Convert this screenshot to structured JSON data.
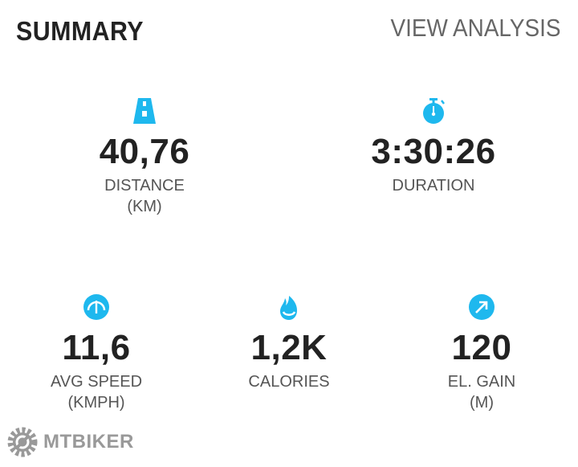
{
  "header": {
    "title": "SUMMARY",
    "link": "VIEW ANALYSIS"
  },
  "accent": "#1eb8ee",
  "stats": [
    {
      "icon": "road-icon",
      "value": "40,76",
      "label": "DISTANCE",
      "unit": "(KM)"
    },
    {
      "icon": "stopwatch-icon",
      "value": "3:30:26",
      "label": "DURATION"
    },
    {
      "icon": "speedometer-icon",
      "value": "11,6",
      "label": "AVG SPEED",
      "unit": "(KMPH)"
    },
    {
      "icon": "flame-icon",
      "value": "1,2K",
      "label": "CALORIES"
    },
    {
      "icon": "arrow-up-right-icon",
      "value": "120",
      "label": "EL. GAIN",
      "unit": "(M)"
    }
  ],
  "watermark": {
    "text": "MTBIKER"
  }
}
